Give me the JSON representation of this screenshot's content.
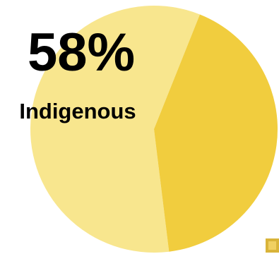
{
  "chart_data": {
    "type": "pie",
    "categories": [
      "Indigenous",
      null
    ],
    "values": [
      58,
      42
    ],
    "value_labels": [
      "58%",
      null
    ],
    "colors": [
      "#f8e68e",
      "#f1cd3e"
    ]
  }
}
